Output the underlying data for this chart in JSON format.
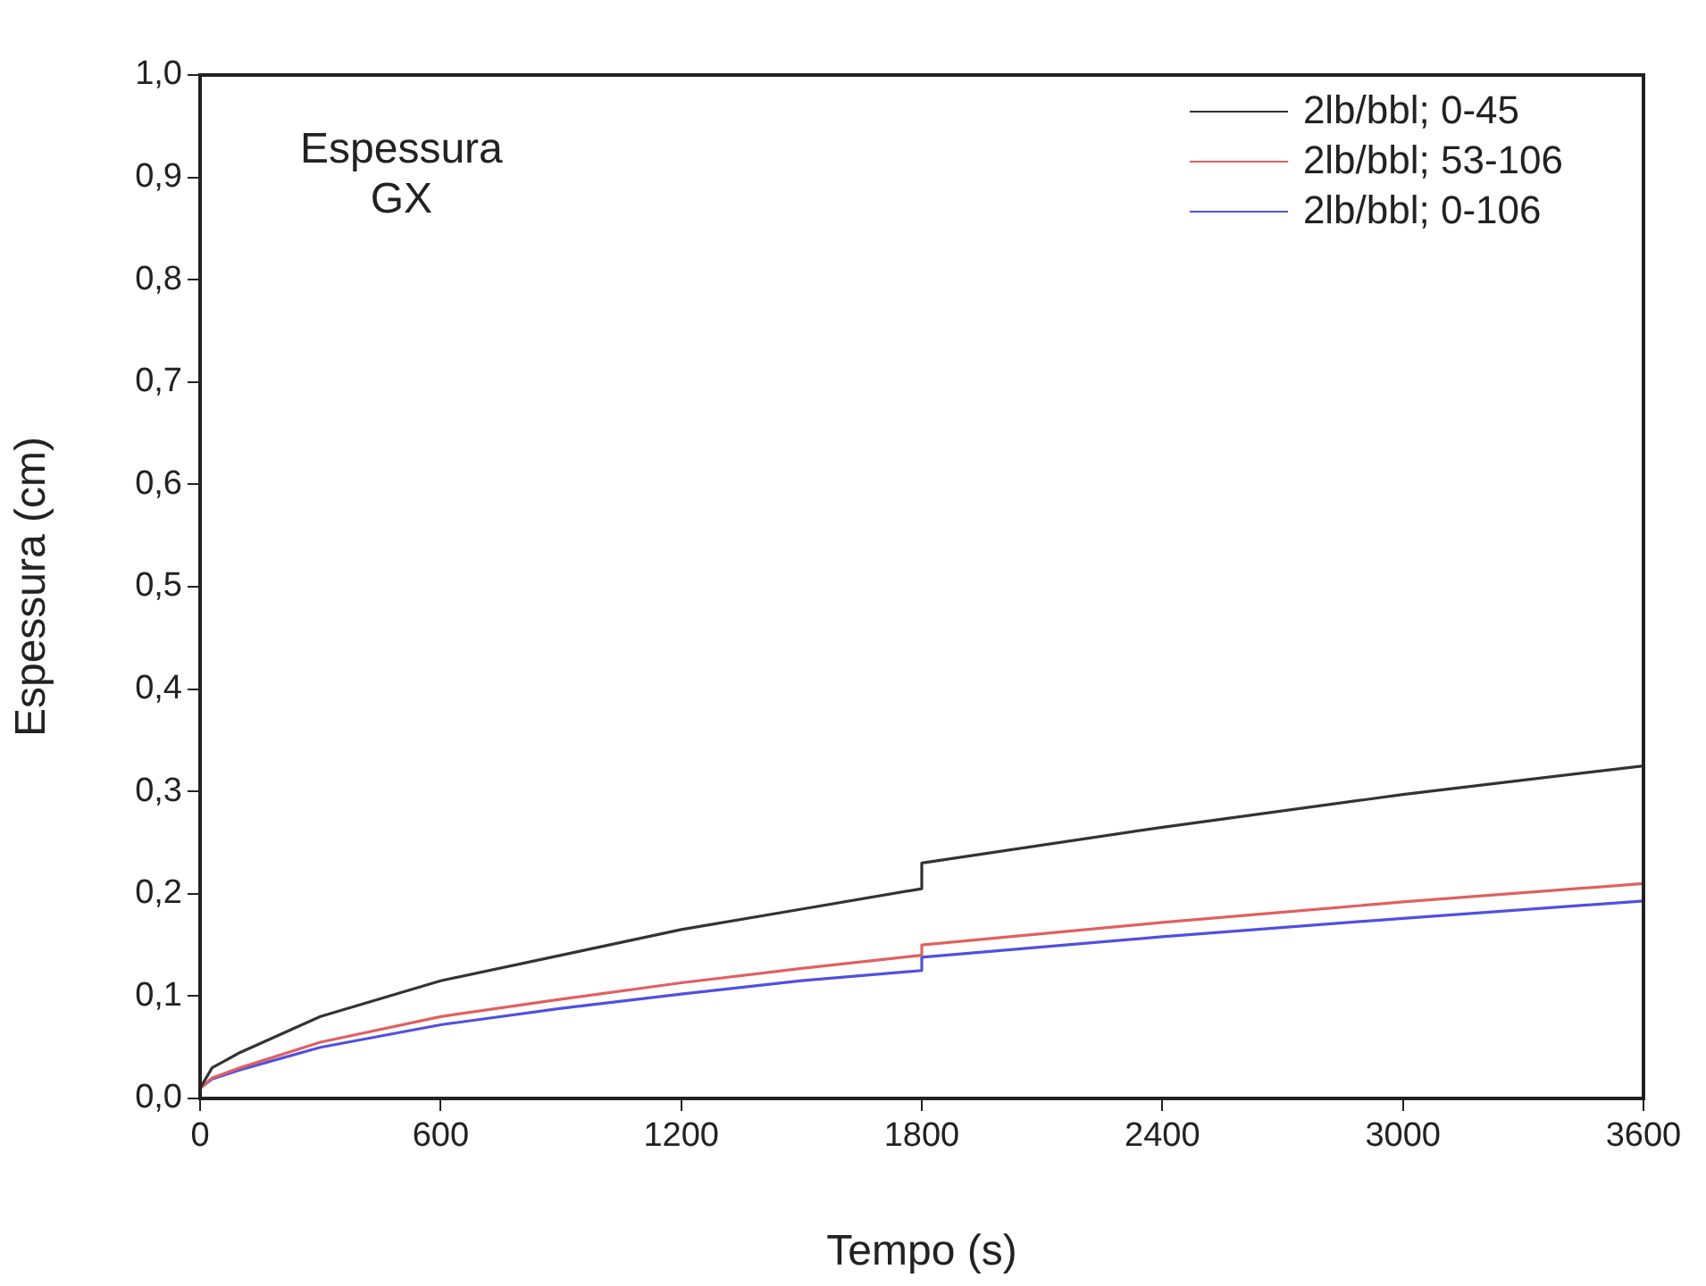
{
  "chart_data": {
    "type": "line",
    "xlabel": "Tempo (s)",
    "ylabel": "Espessura (cm)",
    "annotations": [
      "Espessura\nGX"
    ],
    "xlim": [
      0,
      3600
    ],
    "xticks": [
      0,
      600,
      1200,
      1800,
      2400,
      3000,
      3600
    ],
    "ylim": [
      0,
      1
    ],
    "yticks": [
      {
        "value": 0,
        "label": "0,0"
      },
      {
        "value": 0.1,
        "label": "0,1"
      },
      {
        "value": 0.2,
        "label": "0,2"
      },
      {
        "value": 0.3,
        "label": "0,3"
      },
      {
        "value": 0.4,
        "label": "0,4"
      },
      {
        "value": 0.5,
        "label": "0,5"
      },
      {
        "value": 0.6,
        "label": "0,6"
      },
      {
        "value": 0.7,
        "label": "0,7"
      },
      {
        "value": 0.8,
        "label": "0,8"
      },
      {
        "value": 0.9,
        "label": "0,9"
      },
      {
        "value": 1,
        "label": "1,0"
      }
    ],
    "grid": false,
    "legend": "top right",
    "marker": "none",
    "line_style": "solid",
    "series": [
      {
        "name": "2lb/bbl; 0-45",
        "color": "#333333",
        "x": [
          0,
          30,
          100,
          300,
          600,
          900,
          1200,
          1500,
          1800,
          1800,
          2400,
          3000,
          3600
        ],
        "values": [
          0.01,
          0.03,
          0.045,
          0.08,
          0.115,
          0.14,
          0.165,
          0.185,
          0.205,
          0.23,
          0.265,
          0.297,
          0.325
        ]
      },
      {
        "name": "2lb/bbl; 53-106",
        "color": "#e06060",
        "x": [
          0,
          30,
          100,
          300,
          600,
          900,
          1200,
          1500,
          1800,
          1800,
          2400,
          3000,
          3600
        ],
        "values": [
          0.01,
          0.02,
          0.03,
          0.055,
          0.08,
          0.097,
          0.113,
          0.127,
          0.14,
          0.15,
          0.172,
          0.192,
          0.21
        ]
      },
      {
        "name": "2lb/bbl; 0-106",
        "color": "#5050e0",
        "x": [
          0,
          30,
          100,
          300,
          600,
          900,
          1200,
          1500,
          1800,
          1800,
          2400,
          3000,
          3600
        ],
        "values": [
          0.01,
          0.019,
          0.028,
          0.05,
          0.072,
          0.088,
          0.102,
          0.115,
          0.125,
          0.138,
          0.158,
          0.176,
          0.193
        ]
      }
    ]
  }
}
